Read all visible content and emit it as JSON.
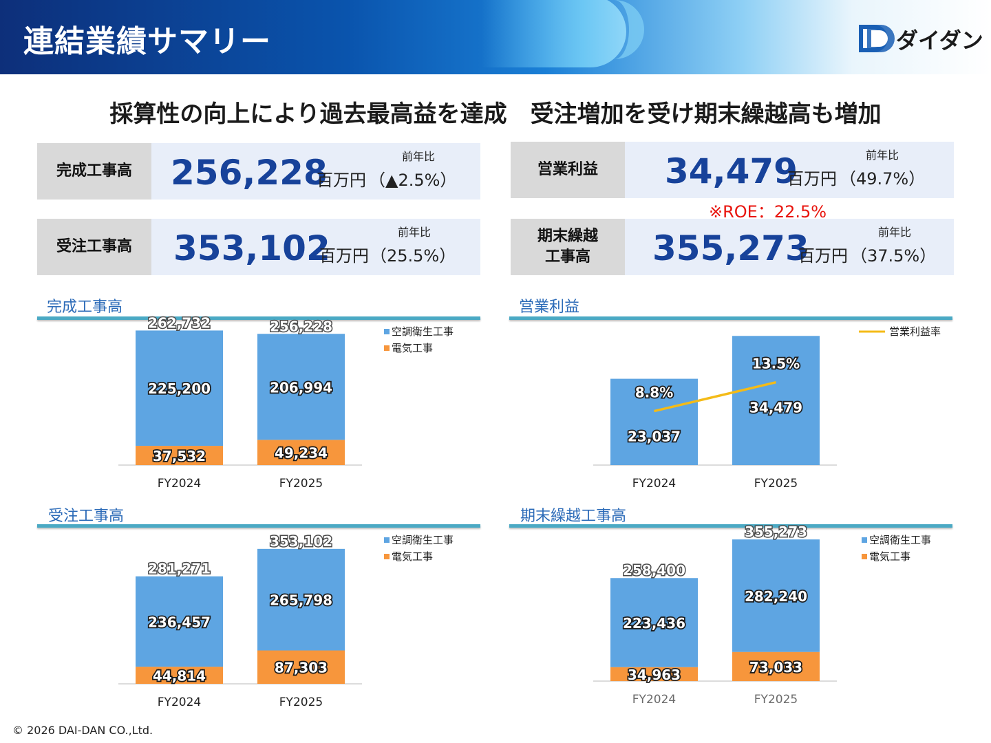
{
  "header": {
    "title": "連結業績サマリー",
    "logo_text": "ダイダン"
  },
  "headline": "採算性の向上により過去最高益を達成　受注増加を受け期末繰越高も増加",
  "kpis": [
    {
      "label": "完成工事高",
      "value": "256,228",
      "unit": "百万円",
      "yoy_label": "前年比",
      "yoy": "（▲2.5%）"
    },
    {
      "label": "営業利益",
      "value": "34,479",
      "unit": "百万円",
      "yoy_label": "前年比",
      "yoy": "（49.7%）"
    },
    {
      "label": "受注工事高",
      "value": "353,102",
      "unit": "百万円",
      "yoy_label": "前年比",
      "yoy": "（25.5%）"
    },
    {
      "label": "期末繰越\n工事高",
      "value": "355,273",
      "unit": "百万円",
      "yoy_label": "前年比",
      "yoy": "（37.5%）"
    }
  ],
  "roe_note": "※ROE：22.5%",
  "colors": {
    "hvac": "#5ea5e2",
    "electric": "#f7963c",
    "line": "#f4bb17",
    "accent": "#17429a"
  },
  "chart_data": [
    {
      "id": "completed",
      "type": "bar",
      "stacked": true,
      "title": "完成工事高",
      "categories": [
        "FY2024",
        "FY2025"
      ],
      "series": [
        {
          "name": "電気工事",
          "values": [
            37532,
            49234
          ]
        },
        {
          "name": "空調衛生工事",
          "values": [
            225200,
            206994
          ]
        }
      ],
      "totals": [
        262732,
        256228
      ],
      "total_labels": [
        "262,732",
        "256,228"
      ],
      "legend_order": [
        "空調衛生工事",
        "電気工事"
      ],
      "legend": "top-right",
      "ylim": [
        0,
        270000
      ],
      "grid": false
    },
    {
      "id": "operating_income",
      "type": "bar",
      "title": "営業利益",
      "categories": [
        "FY2024",
        "FY2025"
      ],
      "series": [
        {
          "name": "営業利益",
          "values": [
            23037,
            34479
          ]
        }
      ],
      "line_series": {
        "name": "営業利益率",
        "values": [
          8.8,
          13.5
        ],
        "labels": [
          "8.8%",
          "13.5%"
        ]
      },
      "legend": "top-right",
      "ylim": [
        0,
        36000
      ],
      "line_ylim": [
        0,
        22
      ],
      "grid": false
    },
    {
      "id": "orders",
      "type": "bar",
      "stacked": true,
      "title": "受注工事高",
      "categories": [
        "FY2024",
        "FY2025"
      ],
      "series": [
        {
          "name": "電気工事",
          "values": [
            44814,
            87303
          ]
        },
        {
          "name": "空調衛生工事",
          "values": [
            236457,
            265798
          ]
        }
      ],
      "totals": [
        281271,
        353102
      ],
      "total_labels": [
        "281,271",
        "353,102"
      ],
      "legend_order": [
        "空調衛生工事",
        "電気工事"
      ],
      "legend": "top-right",
      "ylim": [
        0,
        360000
      ],
      "grid": false
    },
    {
      "id": "backlog",
      "type": "bar",
      "stacked": true,
      "title": "期末繰越工事高",
      "categories": [
        "FY2024",
        "FY2025"
      ],
      "series": [
        {
          "name": "電気工事",
          "values": [
            34963,
            73033
          ]
        },
        {
          "name": "空調衛生工事",
          "values": [
            223436,
            282240
          ]
        }
      ],
      "totals": [
        258400,
        355273
      ],
      "total_labels": [
        "258,400",
        "355,273"
      ],
      "legend_order": [
        "空調衛生工事",
        "電気工事"
      ],
      "legend": "top-right",
      "ylim": [
        0,
        440000
      ],
      "grid": false
    }
  ],
  "footer": "© 2026 DAI-DAN CO.,Ltd."
}
